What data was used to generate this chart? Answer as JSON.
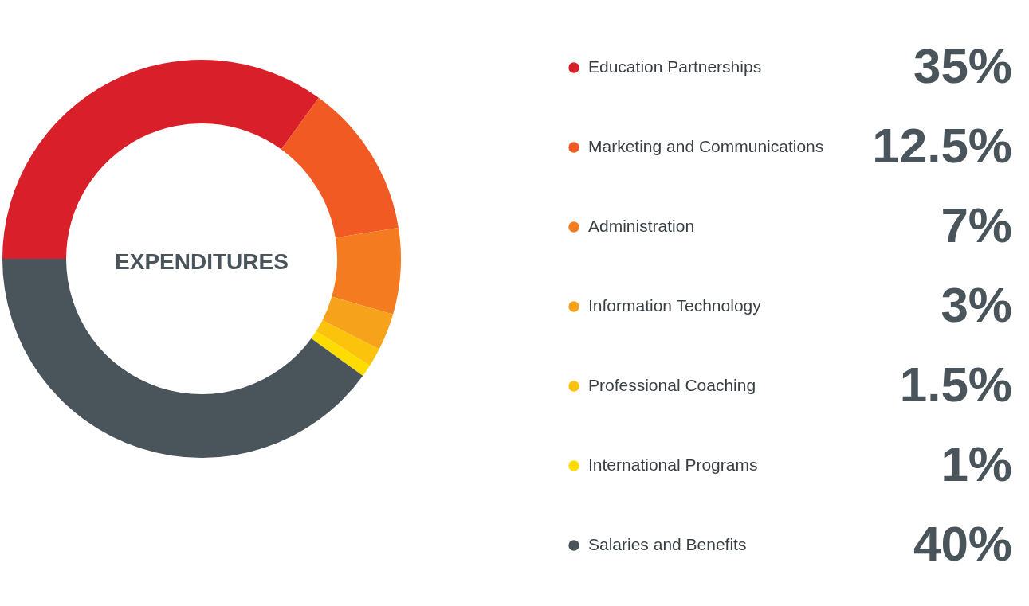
{
  "chart_data": {
    "type": "donut",
    "title": "EXPENDITURES",
    "categories": [
      "Education Partnerships",
      "Marketing and Communications",
      "Administration",
      "Information Technology",
      "Professional Coaching",
      "International Programs",
      "Salaries and Benefits"
    ],
    "values": [
      35,
      12.5,
      7,
      3,
      1.5,
      1,
      40
    ],
    "value_labels": [
      "35%",
      "12.5%",
      "7%",
      "3%",
      "1.5%",
      "1%",
      "40%"
    ],
    "legend": "right",
    "colors": [
      "#d9202a",
      "#f15a22",
      "#f47b20",
      "#f7a21b",
      "#fcc30c",
      "#ffdc00",
      "#4a545b"
    ]
  }
}
